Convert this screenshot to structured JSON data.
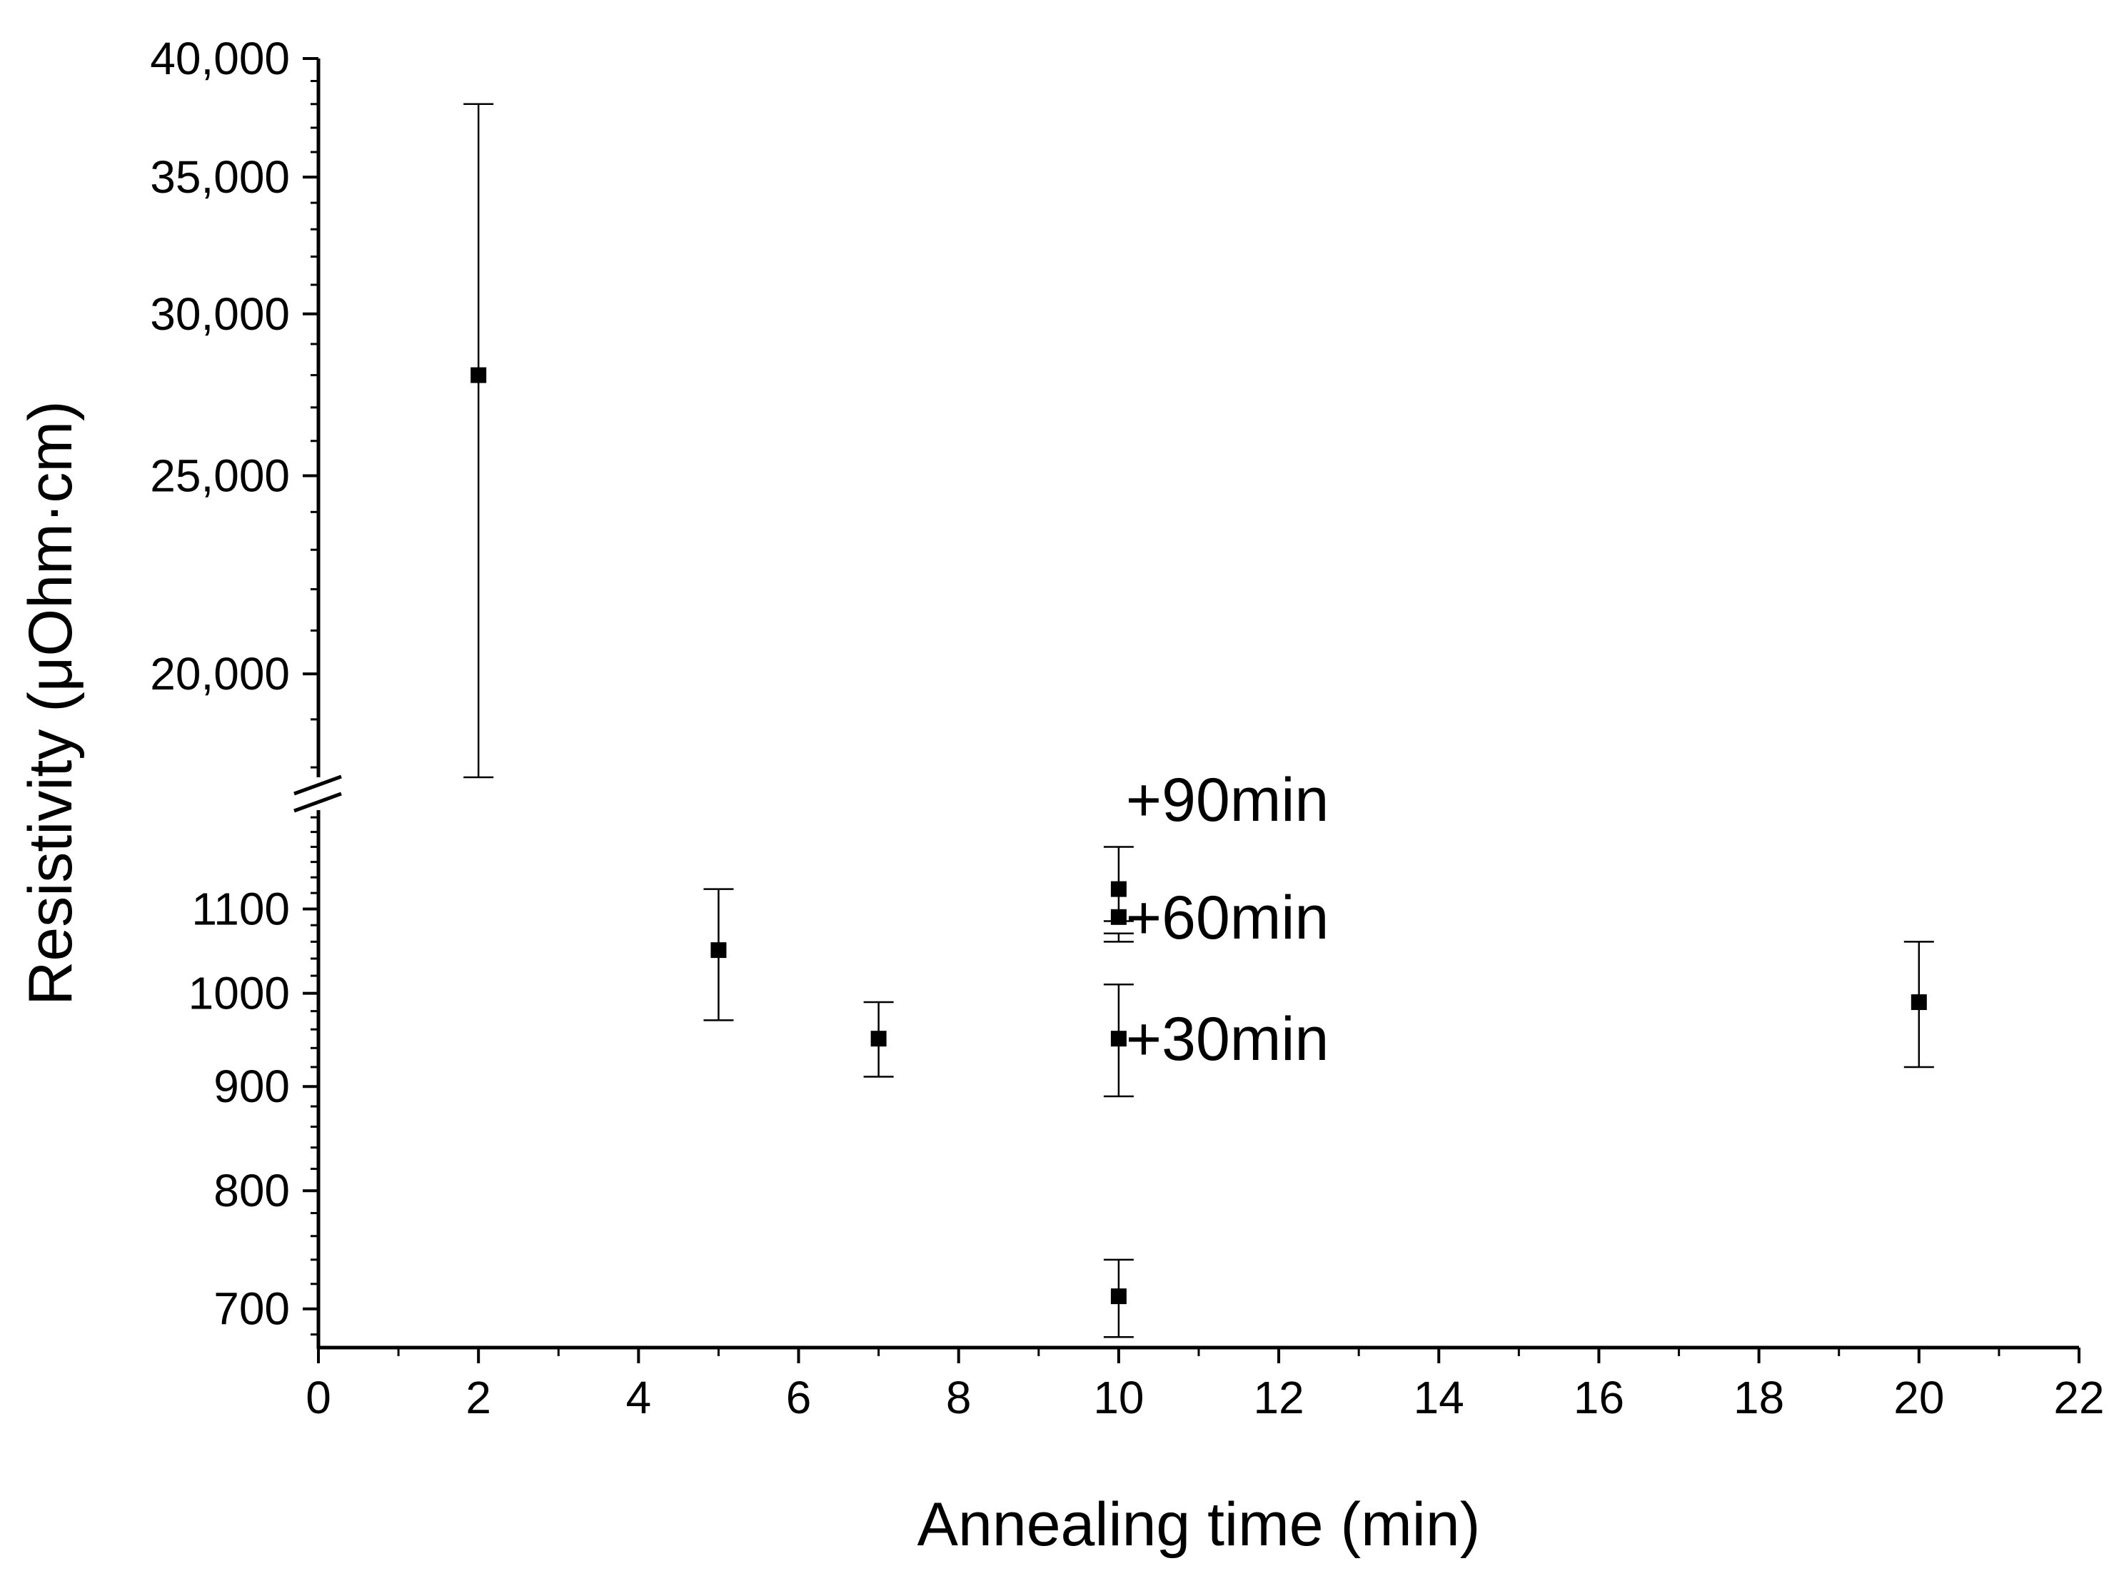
{
  "chart_data": {
    "type": "scatter",
    "title": "",
    "xlabel": "Annealing time (min)",
    "ylabel": "Resistivity (μOhm·cm)",
    "xlim": [
      0,
      22
    ],
    "x_ticks": [
      "0",
      "2",
      "4",
      "6",
      "8",
      "10",
      "12",
      "14",
      "16",
      "18",
      "20",
      "22"
    ],
    "y_axis_break": true,
    "y_upper": {
      "scale": "log",
      "range": [
        17800,
        40000
      ],
      "ticks": [
        "20,000",
        "25,000",
        "30,000",
        "35,000",
        "40,000"
      ]
    },
    "y_lower": {
      "scale": "log",
      "range": [
        670,
        1230
      ],
      "ticks": [
        "700",
        "800",
        "900",
        "1000",
        "1100"
      ]
    },
    "grid": false,
    "marker": "square",
    "color": "#000000",
    "points": [
      {
        "x": 2,
        "y": 28000,
        "err_low": 17800,
        "err_high": 38000
      },
      {
        "x": 5,
        "y": 1050,
        "err_low": 970,
        "err_high": 1125
      },
      {
        "x": 7,
        "y": 950,
        "err_low": 910,
        "err_high": 990
      },
      {
        "x": 10,
        "y": 710,
        "err_low": 678,
        "err_high": 740
      },
      {
        "x": 10,
        "y": 950,
        "err_low": 890,
        "err_high": 1010
      },
      {
        "x": 10,
        "y": 1090,
        "err_low": 1060,
        "err_high": 1070
      },
      {
        "x": 10,
        "y": 1125,
        "err_low": 1085,
        "err_high": 1180
      },
      {
        "x": 20,
        "y": 990,
        "err_low": 920,
        "err_high": 1060
      }
    ],
    "annotations": [
      {
        "text": "+90min",
        "x": 10,
        "y": 1245
      },
      {
        "text": "+60min",
        "x": 10,
        "y": 1090
      },
      {
        "text": "+30min",
        "x": 10,
        "y": 950
      }
    ]
  }
}
